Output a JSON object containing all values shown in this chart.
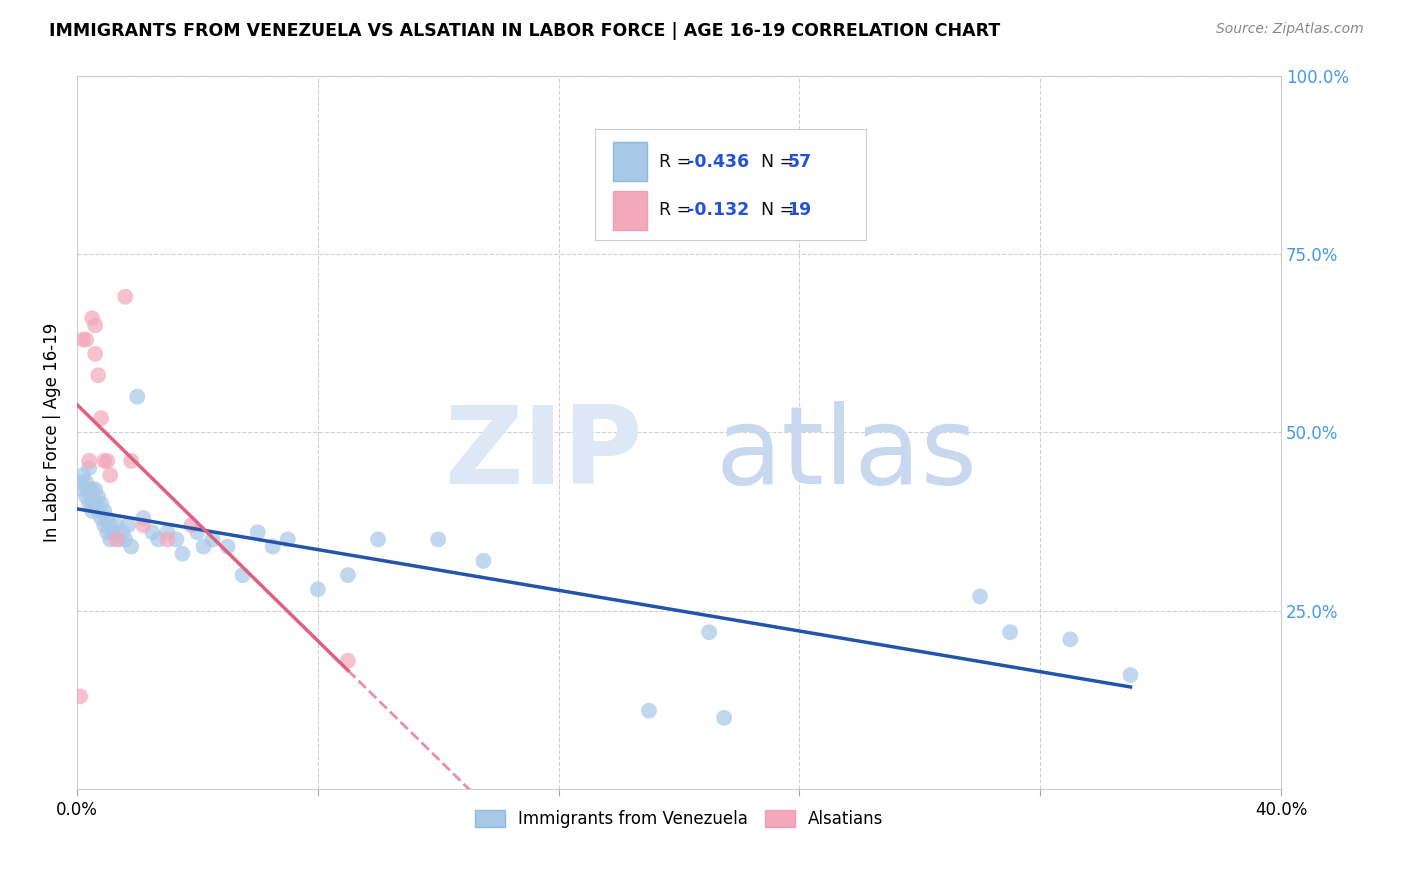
{
  "title": "IMMIGRANTS FROM VENEZUELA VS ALSATIAN IN LABOR FORCE | AGE 16-19 CORRELATION CHART",
  "source": "Source: ZipAtlas.com",
  "ylabel": "In Labor Force | Age 16-19",
  "xlim": [
    0.0,
    0.4
  ],
  "ylim": [
    0.0,
    1.0
  ],
  "ytick_vals": [
    0.0,
    0.25,
    0.5,
    0.75,
    1.0
  ],
  "ytick_labels_right": [
    "",
    "25.0%",
    "50.0%",
    "75.0%",
    "100.0%"
  ],
  "xtick_vals": [
    0.0,
    0.08,
    0.16,
    0.24,
    0.32,
    0.4
  ],
  "xtick_labels": [
    "0.0%",
    "",
    "",
    "",
    "",
    "40.0%"
  ],
  "blue_R": -0.436,
  "blue_N": 57,
  "pink_R": -0.132,
  "pink_N": 19,
  "legend_label_blue": "Immigrants from Venezuela",
  "legend_label_pink": "Alsatians",
  "blue_color": "#a8c8e8",
  "pink_color": "#f4a8bc",
  "blue_line_color": "#2255aa",
  "pink_line_color": "#e06080",
  "blue_x": [
    0.001,
    0.002,
    0.002,
    0.003,
    0.003,
    0.004,
    0.004,
    0.004,
    0.005,
    0.005,
    0.005,
    0.006,
    0.006,
    0.007,
    0.007,
    0.008,
    0.008,
    0.009,
    0.009,
    0.01,
    0.01,
    0.011,
    0.011,
    0.012,
    0.013,
    0.014,
    0.015,
    0.016,
    0.017,
    0.018,
    0.02,
    0.022,
    0.025,
    0.027,
    0.03,
    0.033,
    0.035,
    0.04,
    0.042,
    0.045,
    0.05,
    0.055,
    0.06,
    0.065,
    0.07,
    0.08,
    0.09,
    0.1,
    0.12,
    0.135,
    0.19,
    0.21,
    0.215,
    0.3,
    0.31,
    0.33,
    0.35
  ],
  "blue_y": [
    0.43,
    0.42,
    0.44,
    0.41,
    0.43,
    0.42,
    0.4,
    0.45,
    0.4,
    0.42,
    0.39,
    0.42,
    0.4,
    0.41,
    0.39,
    0.38,
    0.4,
    0.39,
    0.37,
    0.38,
    0.36,
    0.37,
    0.35,
    0.36,
    0.37,
    0.35,
    0.36,
    0.35,
    0.37,
    0.34,
    0.55,
    0.38,
    0.36,
    0.35,
    0.36,
    0.35,
    0.33,
    0.36,
    0.34,
    0.35,
    0.34,
    0.3,
    0.36,
    0.34,
    0.35,
    0.28,
    0.3,
    0.35,
    0.35,
    0.32,
    0.11,
    0.22,
    0.1,
    0.27,
    0.22,
    0.21,
    0.16
  ],
  "pink_x": [
    0.001,
    0.002,
    0.003,
    0.004,
    0.005,
    0.006,
    0.006,
    0.007,
    0.008,
    0.009,
    0.01,
    0.011,
    0.013,
    0.016,
    0.018,
    0.022,
    0.03,
    0.038,
    0.09
  ],
  "pink_y": [
    0.13,
    0.63,
    0.63,
    0.46,
    0.66,
    0.65,
    0.61,
    0.58,
    0.52,
    0.46,
    0.46,
    0.44,
    0.35,
    0.69,
    0.46,
    0.37,
    0.35,
    0.37,
    0.18
  ],
  "background_color": "#ffffff",
  "grid_color": "#d0d0d0",
  "tick_label_color": "#4499ee",
  "watermark_zip_color": "#dce8f5",
  "watermark_atlas_color": "#c8d8ee"
}
